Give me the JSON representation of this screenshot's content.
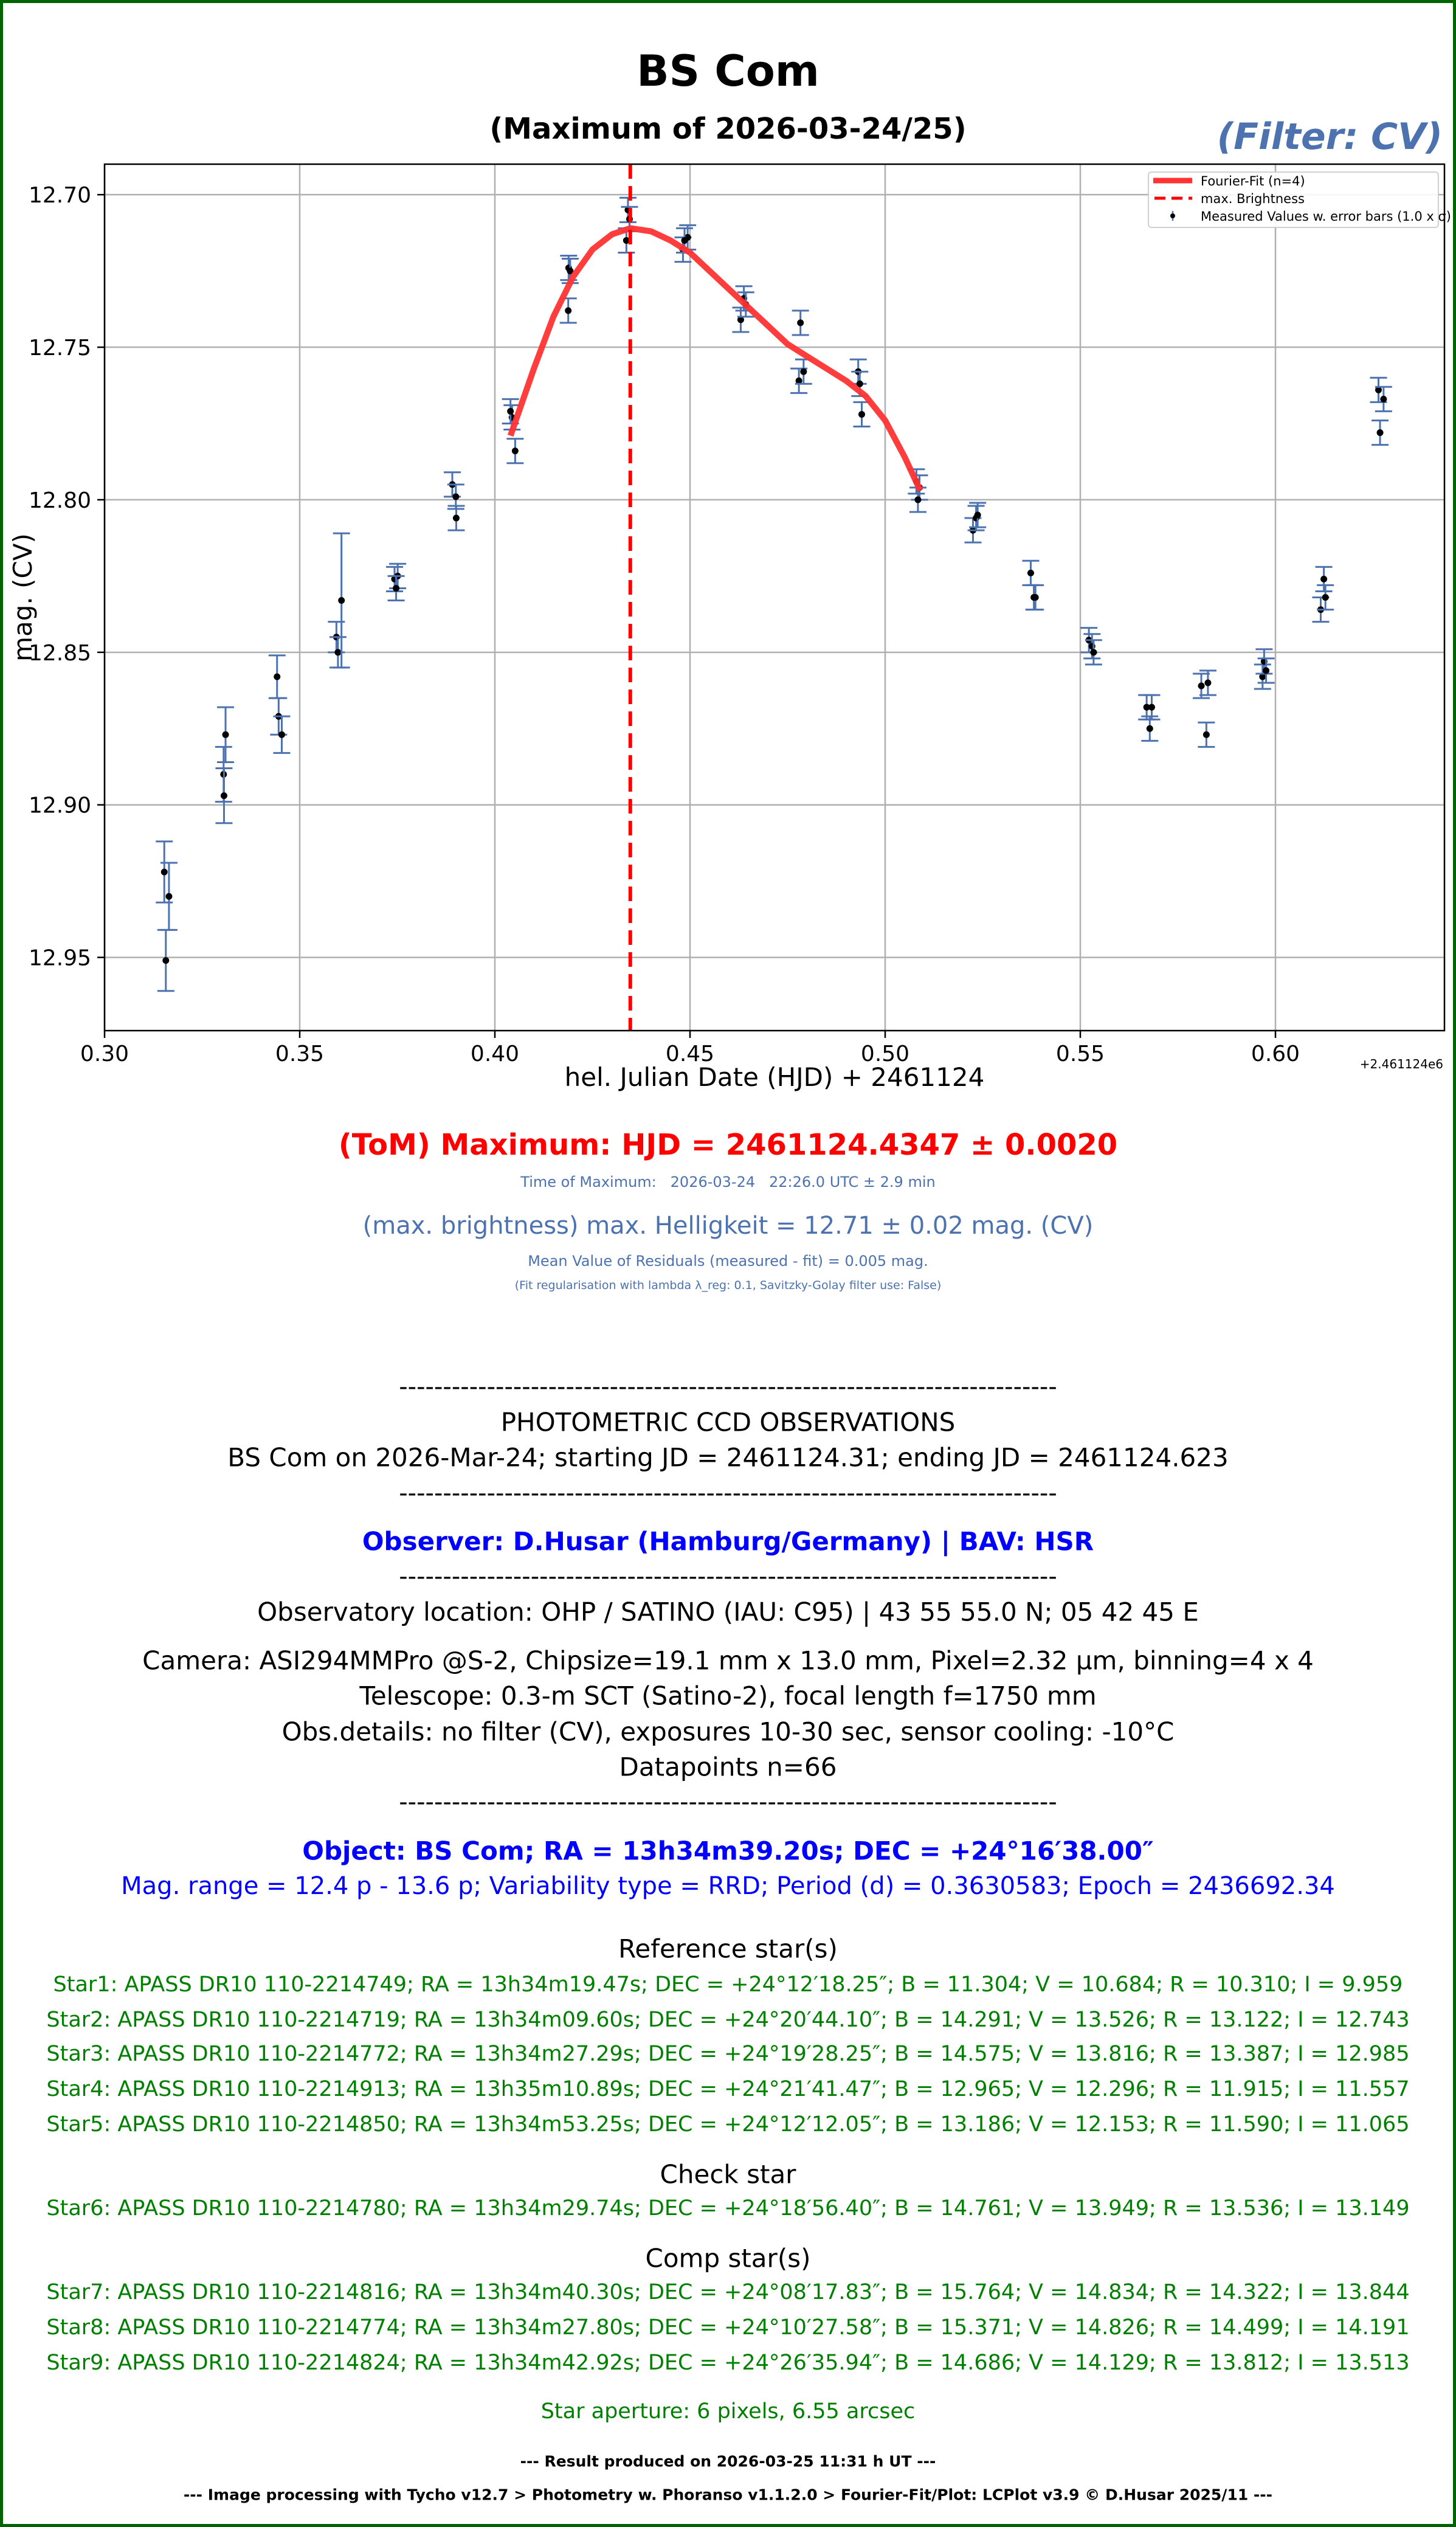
{
  "header": {
    "title": "BS Com",
    "subtitle": "(Maximum of 2026-03-24/25)",
    "filter": "(Filter: CV)"
  },
  "chart_data": {
    "type": "scatter",
    "xlabel": "hel. Julian Date (HJD) + 2461124",
    "ylabel": "mag. (CV)",
    "x_offset_label": "+2.461124e6",
    "xlim": [
      0.3,
      0.6433
    ],
    "ylim": [
      12.974,
      12.69
    ],
    "y_inverted": true,
    "xticks": [
      0.3,
      0.35,
      0.4,
      0.45,
      0.5,
      0.55,
      0.6
    ],
    "xtick_labels": [
      "0.30",
      "0.35",
      "0.40",
      "0.45",
      "0.50",
      "0.55",
      "0.60"
    ],
    "yticks": [
      12.7,
      12.75,
      12.8,
      12.85,
      12.9,
      12.95
    ],
    "ytick_labels": [
      "12.70",
      "12.75",
      "12.80",
      "12.85",
      "12.90",
      "12.95"
    ],
    "grid": true,
    "legend_position": "top-right",
    "colors": {
      "fit": "#ff3333",
      "max_line": "#ff0000",
      "errorbar": "#4c72b0",
      "points": "#000000",
      "grid": "#b0b0b0"
    },
    "legend": [
      "Fourier-Fit (n=4)",
      "max. Brightness",
      "Measured Values w. error bars (1.0 x σ)"
    ],
    "max_brightness_x": 0.4347,
    "series": [
      {
        "name": "Measured Values w. error bars (1.0 x σ)",
        "type": "errorbar",
        "x": [
          0.3153,
          0.3165,
          0.3157,
          0.3305,
          0.3306,
          0.331,
          0.3442,
          0.3446,
          0.3454,
          0.3594,
          0.3598,
          0.3607,
          0.3743,
          0.3751,
          0.3747,
          0.3891,
          0.39,
          0.3901,
          0.4044,
          0.404,
          0.4052,
          0.4189,
          0.4193,
          0.4188,
          0.4337,
          0.4341,
          0.4345,
          0.4482,
          0.4494,
          0.4486,
          0.463,
          0.4638,
          0.4643,
          0.4779,
          0.4783,
          0.4791,
          0.4931,
          0.4935,
          0.494,
          0.508,
          0.5088,
          0.5084,
          0.5225,
          0.5233,
          0.5237,
          0.5373,
          0.5381,
          0.5385,
          0.5522,
          0.553,
          0.5534,
          0.567,
          0.5683,
          0.5678,
          0.581,
          0.5827,
          0.5823,
          0.5967,
          0.5971,
          0.5976,
          0.6116,
          0.6124,
          0.6128,
          0.6264,
          0.6277,
          0.6268
        ],
        "y": [
          12.922,
          12.93,
          12.951,
          12.89,
          12.897,
          12.877,
          12.858,
          12.871,
          12.877,
          12.845,
          12.85,
          12.833,
          12.826,
          12.825,
          12.829,
          12.795,
          12.799,
          12.806,
          12.773,
          12.771,
          12.784,
          12.724,
          12.725,
          12.738,
          12.715,
          12.705,
          12.708,
          12.718,
          12.714,
          12.715,
          12.741,
          12.734,
          12.736,
          12.761,
          12.742,
          12.758,
          12.758,
          12.762,
          12.772,
          12.794,
          12.796,
          12.8,
          12.81,
          12.806,
          12.805,
          12.824,
          12.832,
          12.832,
          12.846,
          12.848,
          12.85,
          12.868,
          12.868,
          12.875,
          12.861,
          12.86,
          12.877,
          12.858,
          12.853,
          12.856,
          12.836,
          12.826,
          12.832,
          12.764,
          12.767,
          12.778
        ],
        "yerr": [
          0.01,
          0.011,
          0.01,
          0.009,
          0.009,
          0.009,
          0.007,
          0.006,
          0.006,
          0.005,
          0.005,
          0.022,
          0.004,
          0.004,
          0.004,
          0.004,
          0.004,
          0.004,
          0.004,
          0.004,
          0.004,
          0.004,
          0.004,
          0.004,
          0.004,
          0.004,
          0.004,
          0.004,
          0.004,
          0.004,
          0.004,
          0.004,
          0.004,
          0.004,
          0.004,
          0.004,
          0.004,
          0.004,
          0.004,
          0.004,
          0.004,
          0.004,
          0.004,
          0.004,
          0.004,
          0.004,
          0.004,
          0.004,
          0.004,
          0.004,
          0.004,
          0.004,
          0.004,
          0.004,
          0.004,
          0.004,
          0.004,
          0.004,
          0.004,
          0.004,
          0.004,
          0.004,
          0.004,
          0.004,
          0.004,
          0.004
        ]
      },
      {
        "name": "Fourier-Fit (n=4)",
        "type": "line",
        "x": [
          0.404,
          0.41,
          0.415,
          0.42,
          0.425,
          0.43,
          0.4347,
          0.44,
          0.445,
          0.45,
          0.455,
          0.46,
          0.465,
          0.47,
          0.475,
          0.48,
          0.485,
          0.49,
          0.495,
          0.5,
          0.505,
          0.509
        ],
        "y": [
          12.779,
          12.757,
          12.74,
          12.727,
          12.718,
          12.713,
          12.711,
          12.712,
          12.715,
          12.719,
          12.725,
          12.731,
          12.737,
          12.743,
          12.749,
          12.753,
          12.757,
          12.761,
          12.766,
          12.774,
          12.786,
          12.797
        ]
      }
    ]
  },
  "results": {
    "tom": "(ToM) Maximum: HJD = 2461124.4347 ± 0.0020",
    "time_of_max": "Time of Maximum:   2026-03-24   22:26.0 UTC ± 2.9 min",
    "max_brightness": "(max. brightness) max. Helligkeit = 12.71 ± 0.02 mag. (CV)",
    "residuals": "Mean Value of Residuals (measured - fit) = 0.005 mag.",
    "regularisation": "(Fit regularisation with lambda λ_reg: 0.1, Savitzky-Golay filter use: False)"
  },
  "observations": {
    "separator": "---------------------------------------------------------------------------",
    "heading": "PHOTOMETRIC CCD OBSERVATIONS",
    "session": "BS Com on 2026-Mar-24; starting JD = 2461124.31; ending JD = 2461124.623",
    "observer": "Observer: D.Husar (Hamburg/Germany) | BAV: HSR",
    "location": "Observatory location: OHP / SATINO (IAU: C95) | 43 55 55.0 N; 05 42 45 E",
    "camera": "Camera: ASI294MMPro @S-2, Chipsize=19.1 mm x 13.0 mm, Pixel=2.32 µm, binning=4 x 4",
    "telescope": "Telescope: 0.3-m SCT (Satino-2), focal length f=1750 mm",
    "details": "Obs.details: no filter (CV), exposures 10-30 sec, sensor cooling: -10°C",
    "datapoints": "Datapoints n=66",
    "object": "Object: BS Com; RA = 13h34m39.20s; DEC = +24°16′38.00″",
    "variability": "Mag. range = 12.4 p - 13.6 p; Variability type = RRD; Period (d) = 0.3630583; Epoch = 2436692.34"
  },
  "stars": {
    "reference_heading": "Reference star(s)",
    "reference": [
      "Star1: APASS DR10 110-2214749; RA = 13h34m19.47s; DEC = +24°12′18.25″; B = 11.304; V = 10.684; R = 10.310; I = 9.959",
      "Star2: APASS DR10 110-2214719; RA = 13h34m09.60s; DEC = +24°20′44.10″; B = 14.291; V = 13.526; R = 13.122; I = 12.743",
      "Star3: APASS DR10 110-2214772; RA = 13h34m27.29s; DEC = +24°19′28.25″; B = 14.575; V = 13.816; R = 13.387; I = 12.985",
      "Star4: APASS DR10 110-2214913; RA = 13h35m10.89s; DEC = +24°21′41.47″; B = 12.965; V = 12.296; R = 11.915; I = 11.557",
      "Star5: APASS DR10 110-2214850; RA = 13h34m53.25s; DEC = +24°12′12.05″; B = 13.186; V = 12.153; R = 11.590; I = 11.065"
    ],
    "check_heading": "Check star",
    "check": [
      "Star6: APASS DR10 110-2214780; RA = 13h34m29.74s; DEC = +24°18′56.40″; B = 14.761; V = 13.949; R = 13.536; I = 13.149"
    ],
    "comp_heading": "Comp star(s)",
    "comp": [
      "Star7: APASS DR10 110-2214816; RA = 13h34m40.30s; DEC = +24°08′17.83″; B = 15.764; V = 14.834; R = 14.322; I = 13.844",
      "Star8: APASS DR10 110-2214774; RA = 13h34m27.80s; DEC = +24°10′27.58″; B = 15.371; V = 14.826; R = 14.499; I = 14.191",
      "Star9: APASS DR10 110-2214824; RA = 13h34m42.92s; DEC = +24°26′35.94″; B = 14.686; V = 14.129; R = 13.812; I = 13.513"
    ],
    "aperture": "Star aperture: 6 pixels, 6.55 arcsec"
  },
  "footer": {
    "produced": "--- Result produced on 2026-03-25 11:31 h UT ---",
    "software": "--- Image processing with Tycho v12.7 > Photometry w. Phoranso v1.1.2.0 > Fourier-Fit/Plot: LCPlot v3.9 © D.Husar 2025/11 ---"
  }
}
